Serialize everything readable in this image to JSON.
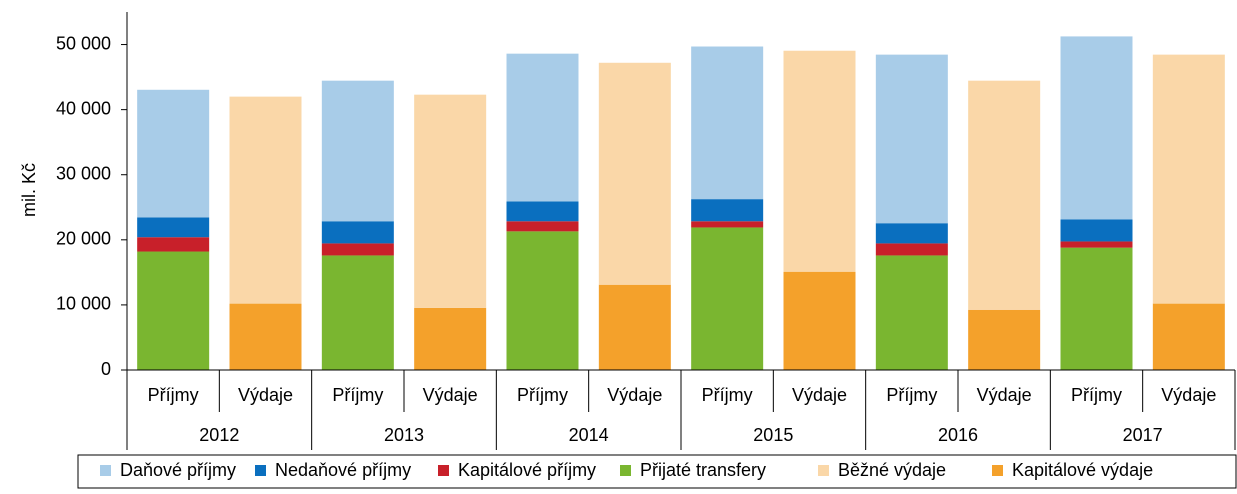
{
  "chart_data": {
    "type": "stacked-bar",
    "y_label": "mil. Kč",
    "categories": [
      "Příjmy",
      "Výdaje",
      "Příjmy",
      "Výdaje",
      "Příjmy",
      "Výdaje",
      "Příjmy",
      "Výdaje",
      "Příjmy",
      "Výdaje",
      "Příjmy",
      "Výdaje"
    ],
    "groups": [
      "2012",
      "2013",
      "2014",
      "2015",
      "2016",
      "2017"
    ],
    "series": [
      {
        "name": "Daňové příjmy",
        "color": "#a8cce8",
        "values": [
          19600,
          null,
          21600,
          null,
          22700,
          null,
          23450,
          null,
          25900,
          null,
          28100,
          null
        ]
      },
      {
        "name": "Nedaňové příjmy",
        "color": "#0a6fbf",
        "values": [
          3050,
          null,
          3400,
          null,
          3050,
          null,
          3400,
          null,
          3100,
          null,
          3400,
          null
        ]
      },
      {
        "name": "Kapitálové příjmy",
        "color": "#c8202a",
        "values": [
          2200,
          null,
          1850,
          null,
          1550,
          null,
          950,
          null,
          1850,
          null,
          950,
          null
        ]
      },
      {
        "name": "Přijaté transfery",
        "color": "#7ab630",
        "values": [
          18200,
          null,
          17600,
          null,
          21300,
          null,
          21900,
          null,
          17600,
          null,
          18800,
          null
        ]
      },
      {
        "name": "Běžné výdaje",
        "color": "#fad7a8",
        "values": [
          null,
          31800,
          null,
          32750,
          null,
          34100,
          null,
          33950,
          null,
          35200,
          null,
          38250
        ]
      },
      {
        "name": "Kapitálové výdaje",
        "color": "#f4a12b",
        "values": [
          null,
          10200,
          null,
          9550,
          null,
          13100,
          null,
          15100,
          null,
          9250,
          null,
          10200
        ]
      }
    ],
    "ylim": [
      0,
      55000
    ],
    "yticks": [
      0,
      {
        "value": 10000,
        "label": "10 000"
      },
      {
        "value": 20000,
        "label": "20 000"
      },
      {
        "value": 30000,
        "label": "30 000"
      },
      {
        "value": 40000,
        "label": "40 000"
      },
      {
        "value": 50000,
        "label": "50 000"
      }
    ],
    "legend": "bottom"
  }
}
